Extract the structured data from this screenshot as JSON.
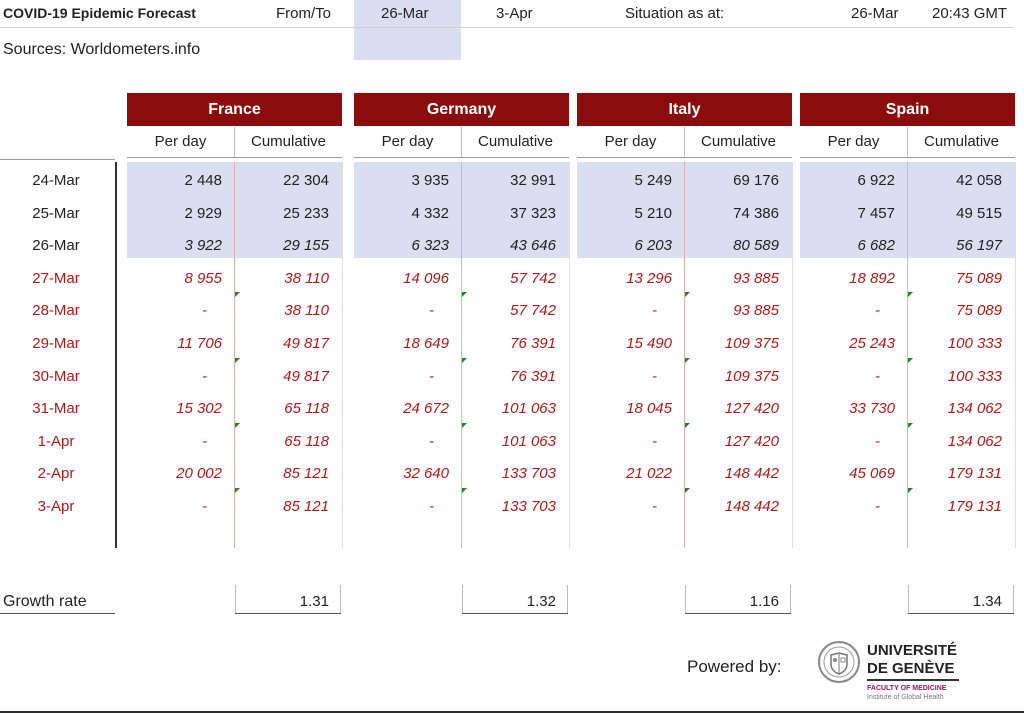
{
  "header": {
    "title": "COVID-19 Epidemic Forecast",
    "from_to_label": "From/To",
    "from_date": "26-Mar",
    "to_date": "3-Apr",
    "situation_label": "Situation as at:",
    "situation_date": "26-Mar",
    "situation_time": "20:43 GMT",
    "sources": "Sources: Worldometers.info"
  },
  "columns": {
    "per_day": "Per day",
    "cumulative": "Cumulative"
  },
  "countries": [
    {
      "name": "France",
      "per_day": [
        "2 448",
        "2 929",
        "3 922",
        "8 955",
        "-",
        "11 706",
        "-",
        "15 302",
        "-",
        "20 002",
        "-"
      ],
      "cumulative": [
        "22 304",
        "25 233",
        "29 155",
        "38 110",
        "38 110",
        "49 817",
        "49 817",
        "65 118",
        "65 118",
        "85 121",
        "85 121"
      ],
      "growth_rate": "1.31"
    },
    {
      "name": "Germany",
      "per_day": [
        "3 935",
        "4 332",
        "6 323",
        "14 096",
        "-",
        "18 649",
        "-",
        "24 672",
        "-",
        "32 640",
        "-"
      ],
      "cumulative": [
        "32 991",
        "37 323",
        "43 646",
        "57 742",
        "57 742",
        "76 391",
        "76 391",
        "101 063",
        "101 063",
        "133 703",
        "133 703"
      ],
      "growth_rate": "1.32"
    },
    {
      "name": "Italy",
      "per_day": [
        "5 249",
        "5 210",
        "6 203",
        "13 296",
        "-",
        "15 490",
        "-",
        "18 045",
        "-",
        "21 022",
        "-"
      ],
      "cumulative": [
        "69 176",
        "74 386",
        "80 589",
        "93 885",
        "93 885",
        "109 375",
        "109 375",
        "127 420",
        "127 420",
        "148 442",
        "148 442"
      ],
      "growth_rate": "1.16"
    },
    {
      "name": "Spain",
      "per_day": [
        "6 922",
        "7 457",
        "6 682",
        "18 892",
        "-",
        "25 243",
        "-",
        "33 730",
        "-",
        "45 069",
        "-"
      ],
      "cumulative": [
        "42 058",
        "49 515",
        "56 197",
        "75 089",
        "75 089",
        "100 333",
        "100 333",
        "134 062",
        "134 062",
        "179 131",
        "179 131"
      ],
      "growth_rate": "1.34"
    }
  ],
  "dates": [
    "24-Mar",
    "25-Mar",
    "26-Mar",
    "27-Mar",
    "28-Mar",
    "29-Mar",
    "30-Mar",
    "31-Mar",
    "1-Apr",
    "2-Apr",
    "3-Apr"
  ],
  "historical_row_count": 3,
  "growth_rate_label": "Growth rate",
  "footer": {
    "powered_by": "Powered by:",
    "university_line1": "UNIVERSITÉ",
    "university_line2": "DE GENÈVE",
    "faculty": "FACULTY OF MEDICINE",
    "institute": "Institute of Global Health"
  },
  "colors": {
    "header_bg": "#8b0c0c",
    "historical_bg": "#d9dff0",
    "forecast_text": "#b01818"
  },
  "icons": {
    "logo": "university-seal-icon"
  }
}
